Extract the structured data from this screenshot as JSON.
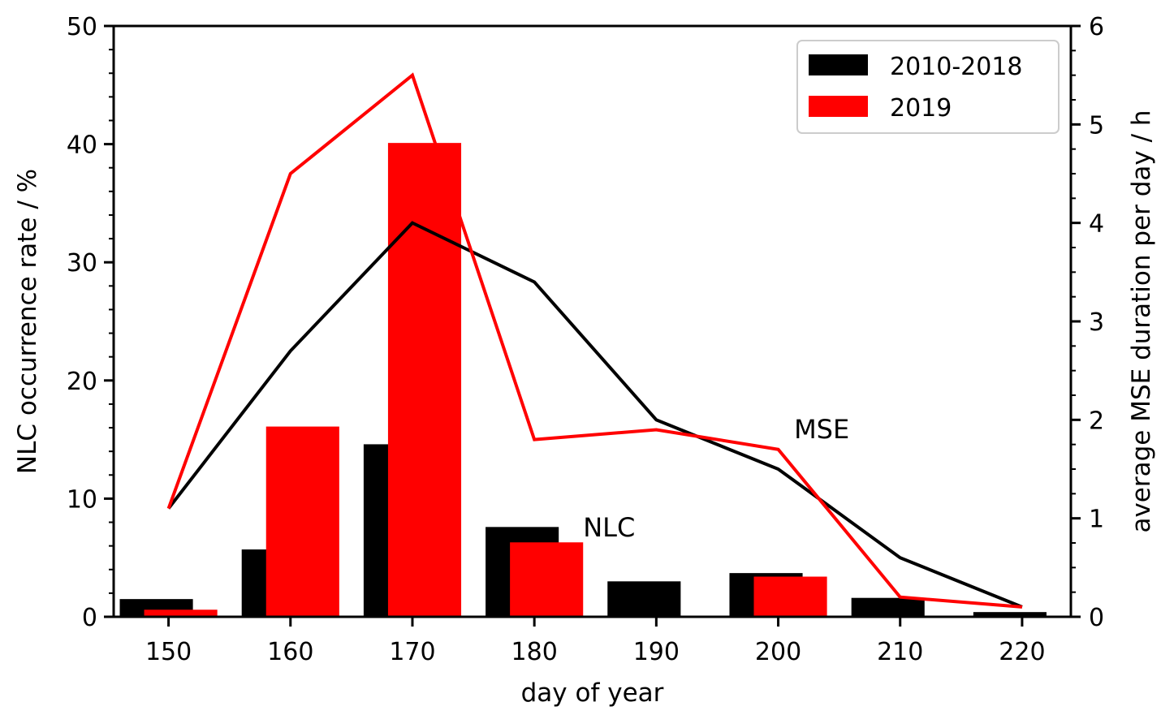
{
  "chart_data": {
    "type": "bar",
    "xlabel": "day of year",
    "ylabel_left": "NLC occurrence rate / %",
    "ylabel_right": "average MSE duration per day / h",
    "xlim": [
      145.5,
      224.0
    ],
    "ylim_left": [
      0,
      50
    ],
    "ylim_right": [
      0,
      6
    ],
    "x_ticks": [
      150,
      160,
      170,
      180,
      190,
      200,
      210,
      220
    ],
    "y_ticks_left": [
      0,
      10,
      20,
      30,
      40,
      50
    ],
    "y_ticks_right": [
      0,
      1,
      2,
      3,
      4,
      5,
      6
    ],
    "grid": false,
    "legend_position": "top-right",
    "bar_series": [
      {
        "name": "2010-2018",
        "color": "#000000",
        "axis": "left",
        "x": [
          150,
          160,
          170,
          180,
          190,
          200,
          210,
          220
        ],
        "values": [
          1.5,
          5.7,
          14.6,
          7.6,
          3.0,
          3.7,
          1.6,
          0.4
        ]
      },
      {
        "name": "2019",
        "color": "#ff0000",
        "axis": "left",
        "x": [
          150,
          160,
          170,
          180,
          190,
          200,
          210,
          220
        ],
        "values": [
          0.6,
          16.1,
          40.1,
          6.3,
          0,
          3.4,
          0,
          0
        ]
      }
    ],
    "line_series": [
      {
        "series": "2010-2018",
        "color": "#000000",
        "axis": "right",
        "x": [
          150,
          160,
          170,
          180,
          190,
          200,
          210,
          220
        ],
        "values": [
          1.1,
          2.7,
          4.0,
          3.4,
          2.0,
          1.5,
          0.6,
          0.1
        ]
      },
      {
        "series": "2019",
        "color": "#ff0000",
        "axis": "right",
        "x": [
          150,
          160,
          170,
          180,
          190,
          200,
          210,
          220
        ],
        "values": [
          1.1,
          4.5,
          5.5,
          1.8,
          1.9,
          1.7,
          0.2,
          0.1
        ]
      }
    ],
    "annotations": [
      {
        "text": "NLC",
        "x": 184,
        "y_left": 6.8
      },
      {
        "text": "MSE",
        "x": 201.3,
        "y_left": 15.1
      }
    ]
  }
}
